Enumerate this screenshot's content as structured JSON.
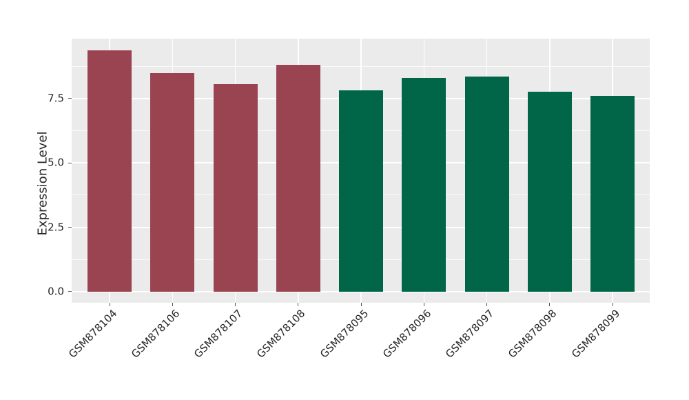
{
  "figure": {
    "background": "#ffffff"
  },
  "chart_data": {
    "type": "bar",
    "title": "",
    "xlabel": "",
    "ylabel": "Expression Level",
    "categories": [
      "GSM878104",
      "GSM878106",
      "GSM878107",
      "GSM878108",
      "GSM878095",
      "GSM878096",
      "GSM878097",
      "GSM878098",
      "GSM878099"
    ],
    "series": [
      {
        "name": "Expression Level",
        "values": [
          9.38,
          8.5,
          8.06,
          8.81,
          7.82,
          8.3,
          8.35,
          7.77,
          7.61
        ]
      }
    ],
    "bar_colors": [
      "#9A4452",
      "#9A4452",
      "#9A4452",
      "#9A4452",
      "#006647",
      "#006647",
      "#006647",
      "#006647",
      "#006647"
    ],
    "group_colors": {
      "left-group": "#9A4452",
      "right-group": "#006647"
    },
    "yticks": [
      0.0,
      2.5,
      5.0,
      7.5
    ],
    "ytick_labels": [
      "0.0",
      "2.5",
      "5.0",
      "7.5"
    ],
    "minor_yticks": [
      1.25,
      3.75,
      6.25,
      8.75
    ],
    "ylim": [
      -0.43,
      9.83
    ],
    "grid": true,
    "legend_position": "none",
    "panel_background": "#EBEBEB",
    "grid_color": "#FFFFFF",
    "text_color": "#262626",
    "tick_color": "#555555"
  }
}
